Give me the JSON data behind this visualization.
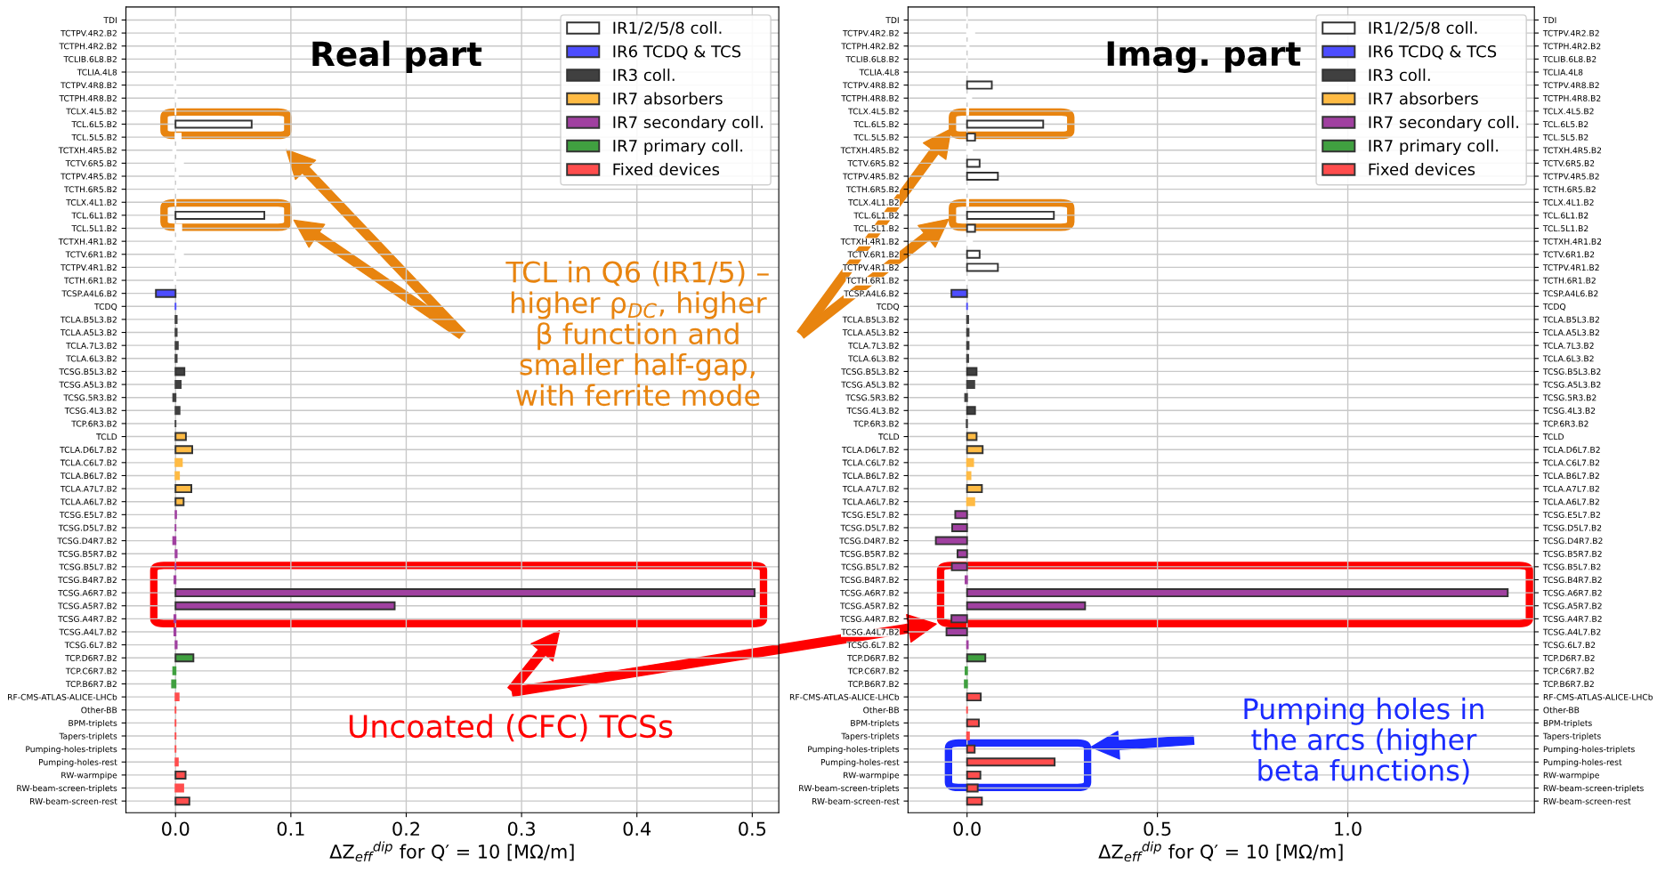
{
  "chart_data": [
    {
      "type": "bar",
      "orientation": "horizontal",
      "xlabel": "ΔZ$_{eff}$$^{dip}$ for Q′ = 10 [MΩ/m]",
      "categories": [
        "TDI",
        "TCTPV.4R2.B2",
        "TCTPH.4R2.B2",
        "TCLIB.6L8.B2",
        "TCLIA.4L8",
        "TCTPV.4R8.B2",
        "TCTPH.4R8.B2",
        "TCLX.4L5.B2",
        "TCL.6L5.B2",
        "TCL.5L5.B2",
        "TCTXH.4R5.B2",
        "TCTV.6R5.B2",
        "TCTPV.4R5.B2",
        "TCTH.6R5.B2",
        "TCLX.4L1.B2",
        "TCL.6L1.B2",
        "TCL.5L1.B2",
        "TCTXH.4R1.B2",
        "TCTV.6R1.B2",
        "TCTPV.4R1.B2",
        "TCTH.6R1.B2",
        "TCSP.A4L6.B2",
        "TCDQ",
        "TCLA.B5L3.B2",
        "TCLA.A5L3.B2",
        "TCLA.7L3.B2",
        "TCLA.6L3.B2",
        "TCSG.B5L3.B2",
        "TCSG.A5L3.B2",
        "TCSG.5R3.B2",
        "TCSG.4L3.B2",
        "TCP.6R3.B2",
        "TCLD",
        "TCLA.D6L7.B2",
        "TCLA.C6L7.B2",
        "TCLA.B6L7.B2",
        "TCLA.A7L7.B2",
        "TCLA.A6L7.B2",
        "TCSG.E5L7.B2",
        "TCSG.D5L7.B2",
        "TCSG.D4R7.B2",
        "TCSG.B5R7.B2",
        "TCSG.B5L7.B2",
        "TCSG.B4R7.B2",
        "TCSG.A6R7.B2",
        "TCSG.A5R7.B2",
        "TCSG.A4R7.B2",
        "TCSG.A4L7.B2",
        "TCSG.6L7.B2",
        "TCP.D6R7.B2",
        "TCP.C6R7.B2",
        "TCP.B6R7.B2",
        "RF-CMS-ATLAS-ALICE-LHCb",
        "Other-BB",
        "BPM-triplets",
        "Tapers-triplets",
        "Pumping-holes-triplets",
        "Pumping-holes-rest",
        "RW-warmpipe",
        "RW-beam-screen-triplets",
        "RW-beam-screen-rest"
      ],
      "series": [
        {
          "name": "IR1/2/5/8 coll.",
          "color": "#ffffff",
          "values": [
            0,
            0.002,
            0,
            0,
            0,
            -0.001,
            0.001,
            0,
            0.066,
            0.0045,
            -0.002,
            0.0065,
            0.002,
            0.0005,
            0,
            0.077,
            0.005,
            -0.002,
            0.0065,
            0.002,
            -0.001,
            null,
            null,
            null,
            null,
            null,
            null,
            null,
            null,
            null,
            null,
            null,
            null,
            null,
            null,
            null,
            null,
            null,
            null,
            null,
            null,
            null,
            null,
            null,
            null,
            null,
            null,
            null,
            null,
            null,
            null,
            null,
            null,
            null,
            null,
            null,
            null,
            null,
            null,
            null,
            null
          ]
        },
        {
          "name": "IR6 TCDQ & TCS",
          "color": "#4d4dff",
          "values": [
            null,
            null,
            null,
            null,
            null,
            null,
            null,
            null,
            null,
            null,
            null,
            null,
            null,
            null,
            null,
            null,
            null,
            null,
            null,
            null,
            null,
            -0.017,
            0,
            null,
            null,
            null,
            null,
            null,
            null,
            null,
            null,
            null,
            null,
            null,
            null,
            null,
            null,
            null,
            null,
            null,
            null,
            null,
            null,
            null,
            null,
            null,
            null,
            null,
            null,
            null,
            null,
            null,
            null,
            null,
            null,
            null,
            null,
            null,
            null,
            null,
            null
          ]
        },
        {
          "name": "IR3 coll.",
          "color": "#404040",
          "values": [
            null,
            null,
            null,
            null,
            null,
            null,
            null,
            null,
            null,
            null,
            null,
            null,
            null,
            null,
            null,
            null,
            null,
            null,
            null,
            null,
            null,
            null,
            null,
            0.001,
            0.001,
            0.002,
            0.001,
            0.0077,
            0.0045,
            -0.002,
            0.0035,
            0,
            null,
            null,
            null,
            null,
            null,
            null,
            null,
            null,
            null,
            null,
            null,
            null,
            null,
            null,
            null,
            null,
            null,
            null,
            null,
            null,
            null,
            null,
            null,
            null,
            null,
            null,
            null,
            null,
            null
          ]
        },
        {
          "name": "IR7 absorbers",
          "color": "#ffbb44",
          "values": [
            null,
            null,
            null,
            null,
            null,
            null,
            null,
            null,
            null,
            null,
            null,
            null,
            null,
            null,
            null,
            null,
            null,
            null,
            null,
            null,
            null,
            null,
            null,
            null,
            null,
            null,
            null,
            null,
            null,
            null,
            null,
            null,
            0.009,
            0.0145,
            0.0055,
            0.003,
            0.0137,
            0.007,
            null,
            null,
            null,
            null,
            null,
            null,
            null,
            null,
            null,
            null,
            null,
            null,
            null,
            null,
            null,
            null,
            null,
            null,
            null,
            null,
            null,
            null,
            null
          ]
        },
        {
          "name": "IR7 secondary coll.",
          "color": "#a040a0",
          "values": [
            null,
            null,
            null,
            null,
            null,
            null,
            null,
            null,
            null,
            null,
            null,
            null,
            null,
            null,
            null,
            null,
            null,
            null,
            null,
            null,
            null,
            null,
            null,
            null,
            null,
            null,
            null,
            null,
            null,
            null,
            null,
            null,
            null,
            null,
            null,
            null,
            null,
            null,
            0.0005,
            0,
            -0.002,
            0.001,
            0,
            -0.001,
            0.502,
            0.19,
            -0.001,
            -0.001,
            0.001,
            null,
            null,
            null,
            null,
            null,
            null,
            null,
            null,
            null,
            null,
            null,
            null
          ]
        },
        {
          "name": "IR7 primary coll.",
          "color": "#40a040",
          "values": [
            null,
            null,
            null,
            null,
            null,
            null,
            null,
            null,
            null,
            null,
            null,
            null,
            null,
            null,
            null,
            null,
            null,
            null,
            null,
            null,
            null,
            null,
            null,
            null,
            null,
            null,
            null,
            null,
            null,
            null,
            null,
            null,
            null,
            null,
            null,
            null,
            null,
            null,
            null,
            null,
            null,
            null,
            null,
            null,
            null,
            null,
            null,
            null,
            null,
            0.0155,
            -0.002,
            -0.003,
            null,
            null,
            null,
            null,
            null,
            null,
            null,
            null,
            null
          ]
        },
        {
          "name": "Fixed devices",
          "color": "#ff4d4d",
          "values": [
            null,
            null,
            null,
            null,
            null,
            null,
            null,
            null,
            null,
            null,
            null,
            null,
            null,
            null,
            null,
            null,
            null,
            null,
            null,
            null,
            null,
            null,
            null,
            null,
            null,
            null,
            null,
            null,
            null,
            null,
            null,
            null,
            null,
            null,
            null,
            null,
            null,
            null,
            null,
            null,
            null,
            null,
            null,
            null,
            null,
            null,
            null,
            null,
            null,
            null,
            null,
            null,
            0.0027,
            0,
            0,
            0,
            0,
            0.002,
            0.0087,
            0.0067,
            0.012
          ]
        }
      ],
      "xlim": [
        -0.043,
        0.523
      ],
      "xticks": [
        {
          "value": 0,
          "label": "0.0"
        },
        {
          "value": 0.1,
          "label": "0.1"
        },
        {
          "value": 0.2,
          "label": "0.2"
        },
        {
          "value": 0.3,
          "label": "0.3"
        },
        {
          "value": 0.4,
          "label": "0.4"
        },
        {
          "value": 0.5,
          "label": "0.5"
        }
      ],
      "grid": true,
      "legend": "top right",
      "annotations": [
        "Real part",
        "TCL in Q6 (IR1/5) –\nhigher ρ$_{DC}$, higher\nβ function and\nsmaller half-gap,\nwith ferrite mode",
        "Uncoated (CFC) TCSs"
      ]
    },
    {
      "type": "bar",
      "orientation": "horizontal",
      "xlabel": "ΔZ$_{eff}$$^{dip}$ for Q′ = 10 [MΩ/m]",
      "categories": [
        "TDI",
        "TCTPV.4R2.B2",
        "TCTPH.4R2.B2",
        "TCLIB.6L8.B2",
        "TCLIA.4L8",
        "TCTPV.4R8.B2",
        "TCTPH.4R8.B2",
        "TCLX.4L5.B2",
        "TCL.6L5.B2",
        "TCL.5L5.B2",
        "TCTXH.4R5.B2",
        "TCTV.6R5.B2",
        "TCTPV.4R5.B2",
        "TCTH.6R5.B2",
        "TCLX.4L1.B2",
        "TCL.6L1.B2",
        "TCL.5L1.B2",
        "TCTXH.4R1.B2",
        "TCTV.6R1.B2",
        "TCTPV.4R1.B2",
        "TCTH.6R1.B2",
        "TCSP.A4L6.B2",
        "TCDQ",
        "TCLA.B5L3.B2",
        "TCLA.A5L3.B2",
        "TCLA.7L3.B2",
        "TCLA.6L3.B2",
        "TCSG.B5L3.B2",
        "TCSG.A5L3.B2",
        "TCSG.5R3.B2",
        "TCSG.4L3.B2",
        "TCP.6R3.B2",
        "TCLD",
        "TCLA.D6L7.B2",
        "TCLA.C6L7.B2",
        "TCLA.B6L7.B2",
        "TCLA.A7L7.B2",
        "TCLA.A6L7.B2",
        "TCSG.E5L7.B2",
        "TCSG.D5L7.B2",
        "TCSG.D4R7.B2",
        "TCSG.B5R7.B2",
        "TCSG.B5L7.B2",
        "TCSG.B4R7.B2",
        "TCSG.A6R7.B2",
        "TCSG.A5R7.B2",
        "TCSG.A4R7.B2",
        "TCSG.A4L7.B2",
        "TCSG.6L7.B2",
        "TCP.D6R7.B2",
        "TCP.C6R7.B2",
        "TCP.B6R7.B2",
        "RF-CMS-ATLAS-ALICE-LHCb",
        "Other-BB",
        "BPM-triplets",
        "Tapers-triplets",
        "Pumping-holes-triplets",
        "Pumping-holes-rest",
        "RW-warmpipe",
        "RW-beam-screen-triplets",
        "RW-beam-screen-rest"
      ],
      "series": [
        {
          "name": "IR1/2/5/8 coll.",
          "color": "#ffffff",
          "values": [
            0,
            0.019,
            0.004,
            0,
            0,
            0.065,
            0.011,
            0.003,
            0.2,
            0.021,
            0.013,
            0.033,
            0.081,
            -0.002,
            0.003,
            0.228,
            0.021,
            0.013,
            0.033,
            0.081,
            -0.002,
            null,
            null,
            null,
            null,
            null,
            null,
            null,
            null,
            null,
            null,
            null,
            null,
            null,
            null,
            null,
            null,
            null,
            null,
            null,
            null,
            null,
            null,
            null,
            null,
            null,
            null,
            null,
            null,
            null,
            null,
            null,
            null,
            null,
            null,
            null,
            null,
            null,
            null,
            null,
            null
          ]
        },
        {
          "name": "IR6 TCDQ & TCS",
          "color": "#4d4dff",
          "values": [
            null,
            null,
            null,
            null,
            null,
            null,
            null,
            null,
            null,
            null,
            null,
            null,
            null,
            null,
            null,
            null,
            null,
            null,
            null,
            null,
            null,
            -0.041,
            0,
            null,
            null,
            null,
            null,
            null,
            null,
            null,
            null,
            null,
            null,
            null,
            null,
            null,
            null,
            null,
            null,
            null,
            null,
            null,
            null,
            null,
            null,
            null,
            null,
            null,
            null,
            null,
            null,
            null,
            null,
            null,
            null,
            null,
            null,
            null,
            null,
            null,
            null
          ]
        },
        {
          "name": "IR3 coll.",
          "color": "#404040",
          "values": [
            null,
            null,
            null,
            null,
            null,
            null,
            null,
            null,
            null,
            null,
            null,
            null,
            null,
            null,
            null,
            null,
            null,
            null,
            null,
            null,
            null,
            null,
            null,
            0.003,
            0.004,
            0.004,
            0.003,
            0.025,
            0.019,
            -0.005,
            0.021,
            -0.001,
            null,
            null,
            null,
            null,
            null,
            null,
            null,
            null,
            null,
            null,
            null,
            null,
            null,
            null,
            null,
            null,
            null,
            null,
            null,
            null,
            null,
            null,
            null,
            null,
            null,
            null,
            null,
            null,
            null
          ]
        },
        {
          "name": "IR7 absorbers",
          "color": "#ffbb44",
          "values": [
            null,
            null,
            null,
            null,
            null,
            null,
            null,
            null,
            null,
            null,
            null,
            null,
            null,
            null,
            null,
            null,
            null,
            null,
            null,
            null,
            null,
            null,
            null,
            null,
            null,
            null,
            null,
            null,
            null,
            null,
            null,
            null,
            0.025,
            0.041,
            0.016,
            0.009,
            0.039,
            0.019,
            null,
            null,
            null,
            null,
            null,
            null,
            null,
            null,
            null,
            null,
            null,
            null,
            null,
            null,
            null,
            null,
            null,
            null,
            null,
            null,
            null,
            null,
            null
          ]
        },
        {
          "name": "IR7 secondary coll.",
          "color": "#a040a0",
          "values": [
            null,
            null,
            null,
            null,
            null,
            null,
            null,
            null,
            null,
            null,
            null,
            null,
            null,
            null,
            null,
            null,
            null,
            null,
            null,
            null,
            null,
            null,
            null,
            null,
            null,
            null,
            null,
            null,
            null,
            null,
            null,
            null,
            null,
            null,
            null,
            null,
            null,
            null,
            -0.031,
            -0.039,
            -0.082,
            -0.025,
            -0.04,
            -0.004,
            1.42,
            0.31,
            -0.041,
            -0.054,
            0.002,
            null,
            null,
            null,
            null,
            null,
            null,
            null,
            null,
            null,
            null,
            null,
            null
          ]
        },
        {
          "name": "IR7 primary coll.",
          "color": "#40a040",
          "values": [
            null,
            null,
            null,
            null,
            null,
            null,
            null,
            null,
            null,
            null,
            null,
            null,
            null,
            null,
            null,
            null,
            null,
            null,
            null,
            null,
            null,
            null,
            null,
            null,
            null,
            null,
            null,
            null,
            null,
            null,
            null,
            null,
            null,
            null,
            null,
            null,
            null,
            null,
            null,
            null,
            null,
            null,
            null,
            null,
            null,
            null,
            null,
            null,
            null,
            0.048,
            -0.004,
            -0.006,
            null,
            null,
            null,
            null,
            null,
            null,
            null,
            null,
            null
          ]
        },
        {
          "name": "Fixed devices",
          "color": "#ff4d4d",
          "values": [
            null,
            null,
            null,
            null,
            null,
            null,
            null,
            null,
            null,
            null,
            null,
            null,
            null,
            null,
            null,
            null,
            null,
            null,
            null,
            null,
            null,
            null,
            null,
            null,
            null,
            null,
            null,
            null,
            null,
            null,
            null,
            null,
            null,
            null,
            null,
            null,
            null,
            null,
            null,
            null,
            null,
            null,
            null,
            null,
            null,
            null,
            null,
            null,
            null,
            null,
            null,
            null,
            0.036,
            0,
            0.031,
            0.005,
            0.02,
            0.23,
            0.035,
            0.028,
            0.039
          ]
        }
      ],
      "xlim": [
        -0.155,
        1.49
      ],
      "xticks": [
        {
          "value": 0,
          "label": "0.0"
        },
        {
          "value": 0.5,
          "label": "0.5"
        },
        {
          "value": 1.0,
          "label": "1.0"
        }
      ],
      "grid": true,
      "legend": "top right",
      "annotations": [
        "Imag. part",
        "Pumping holes in\nthe arcs (higher\nbeta functions)"
      ]
    }
  ]
}
